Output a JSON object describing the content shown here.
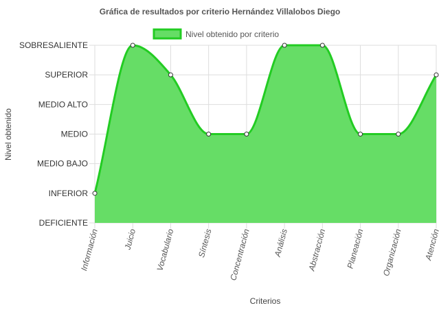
{
  "chart_data": {
    "type": "area",
    "title": "Gráfica de resultados por criterio Hernández Villalobos Diego",
    "xlabel": "Criterios",
    "ylabel": "Nivel obtenido",
    "y_levels": [
      "DEFICIENTE",
      "INFERIOR",
      "MEDIO BAJO",
      "MEDIO",
      "MEDIO ALTO",
      "SUPERIOR",
      "SOBRESALIENTE"
    ],
    "ylim": [
      0,
      6
    ],
    "categories": [
      "Información",
      "Juicio",
      "Vocabulario",
      "Síntesis",
      "Concentración",
      "Análisis",
      "Abstracción",
      "Planeación",
      "Organización",
      "Atención"
    ],
    "series": [
      {
        "name": "Nivel obtenido por criterio",
        "values": [
          1,
          6,
          5,
          3,
          3,
          6,
          6,
          3,
          3,
          5
        ]
      }
    ],
    "legend_position": "top",
    "grid": true,
    "colors": {
      "fill": "#66dd66",
      "line": "#22cc22",
      "grid": "#dddddd",
      "point_fill": "#ffffff",
      "point_stroke": "#333333"
    }
  }
}
